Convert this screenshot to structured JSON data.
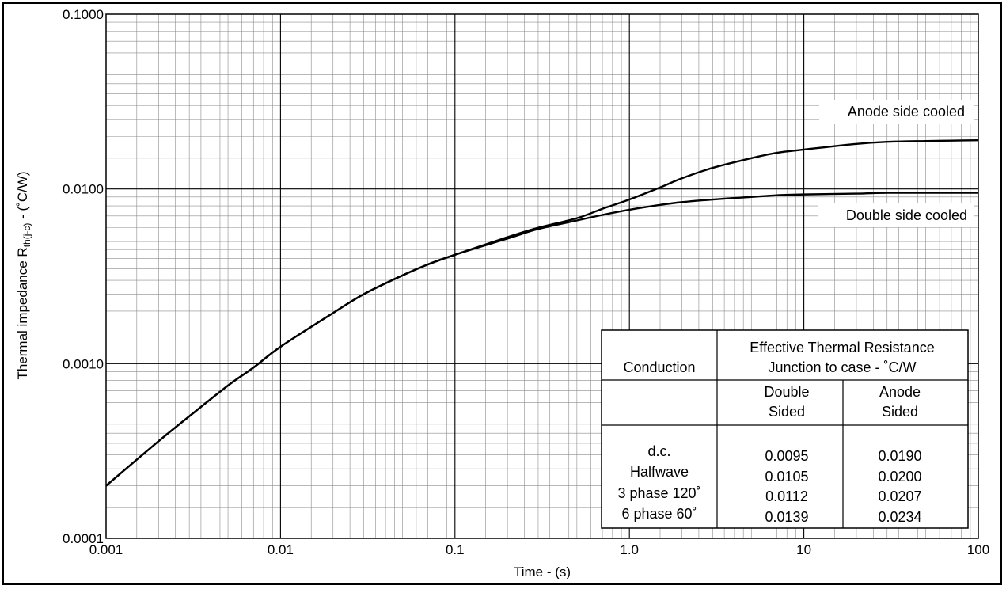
{
  "chart_data": {
    "type": "line",
    "title": "",
    "xlabel": "Time - (s)",
    "ylabel": {
      "prefix": "Thermal impedance R",
      "subscript": "th(j-c)",
      "suffix": " - (˚C/W)"
    },
    "x_scale": "log",
    "y_scale": "log",
    "xlim": [
      0.001,
      100
    ],
    "ylim": [
      0.0001,
      0.1
    ],
    "grid": true,
    "x_ticks": [
      {
        "value": 0.001,
        "label": "0.001"
      },
      {
        "value": 0.01,
        "label": "0.01"
      },
      {
        "value": 0.1,
        "label": "0.1"
      },
      {
        "value": 1,
        "label": "1.0"
      },
      {
        "value": 10,
        "label": "10"
      },
      {
        "value": 100,
        "label": "100"
      }
    ],
    "y_ticks": [
      {
        "value": 0.0001,
        "label": "0.0001"
      },
      {
        "value": 0.001,
        "label": "0.0010"
      },
      {
        "value": 0.01,
        "label": "0.0100"
      },
      {
        "value": 0.1,
        "label": "0.1000"
      }
    ],
    "series": [
      {
        "name": "Anode side cooled",
        "x": [
          0.001,
          0.002,
          0.003,
          0.005,
          0.007,
          0.01,
          0.02,
          0.03,
          0.05,
          0.07,
          0.1,
          0.2,
          0.3,
          0.5,
          0.7,
          1,
          1.5,
          2,
          3,
          5,
          7,
          10,
          20,
          30,
          50,
          70,
          100
        ],
        "y": [
          0.0002,
          0.00036,
          0.0005,
          0.00075,
          0.00095,
          0.00125,
          0.00195,
          0.0025,
          0.0032,
          0.0037,
          0.0042,
          0.0053,
          0.006,
          0.0068,
          0.0077,
          0.0087,
          0.0102,
          0.0115,
          0.0132,
          0.015,
          0.0161,
          0.0168,
          0.0181,
          0.0186,
          0.0188,
          0.0189,
          0.019
        ]
      },
      {
        "name": "Double side cooled",
        "x": [
          0.001,
          0.002,
          0.003,
          0.005,
          0.007,
          0.01,
          0.02,
          0.03,
          0.05,
          0.07,
          0.1,
          0.2,
          0.3,
          0.5,
          0.7,
          1,
          1.5,
          2,
          3,
          5,
          7,
          10,
          20,
          30,
          50,
          70,
          100
        ],
        "y": [
          0.0002,
          0.00036,
          0.0005,
          0.00075,
          0.00095,
          0.00125,
          0.00195,
          0.0025,
          0.0032,
          0.0037,
          0.0042,
          0.0052,
          0.0059,
          0.0066,
          0.0071,
          0.0076,
          0.0081,
          0.0084,
          0.0087,
          0.009,
          0.0092,
          0.0093,
          0.0094,
          0.0095,
          0.0095,
          0.0095,
          0.0095
        ]
      }
    ],
    "annotations": [
      "Anode side cooled",
      "Double side cooled"
    ],
    "table": {
      "col1_header": "Conduction",
      "group_header_line1": "Effective Thermal Resistance",
      "group_header_line2": "Junction to case - ˚C/W",
      "sub_header_1": [
        "Double",
        "Sided"
      ],
      "sub_header_2": [
        "Anode",
        "Sided"
      ],
      "rows": [
        {
          "conduction": "d.c.",
          "double_sided": "0.0095",
          "anode_sided": "0.0190"
        },
        {
          "conduction": "Halfwave",
          "double_sided": "0.0105",
          "anode_sided": "0.0200"
        },
        {
          "conduction": "3 phase 120˚",
          "double_sided": "0.0112",
          "anode_sided": "0.0207"
        },
        {
          "conduction": "6 phase 60˚",
          "double_sided": "0.0139",
          "anode_sided": "0.0234"
        }
      ]
    },
    "colors": {
      "line": "#000000",
      "grid_major": "#000000",
      "grid_minor": "#8c8c8c",
      "background": "#ffffff"
    }
  }
}
